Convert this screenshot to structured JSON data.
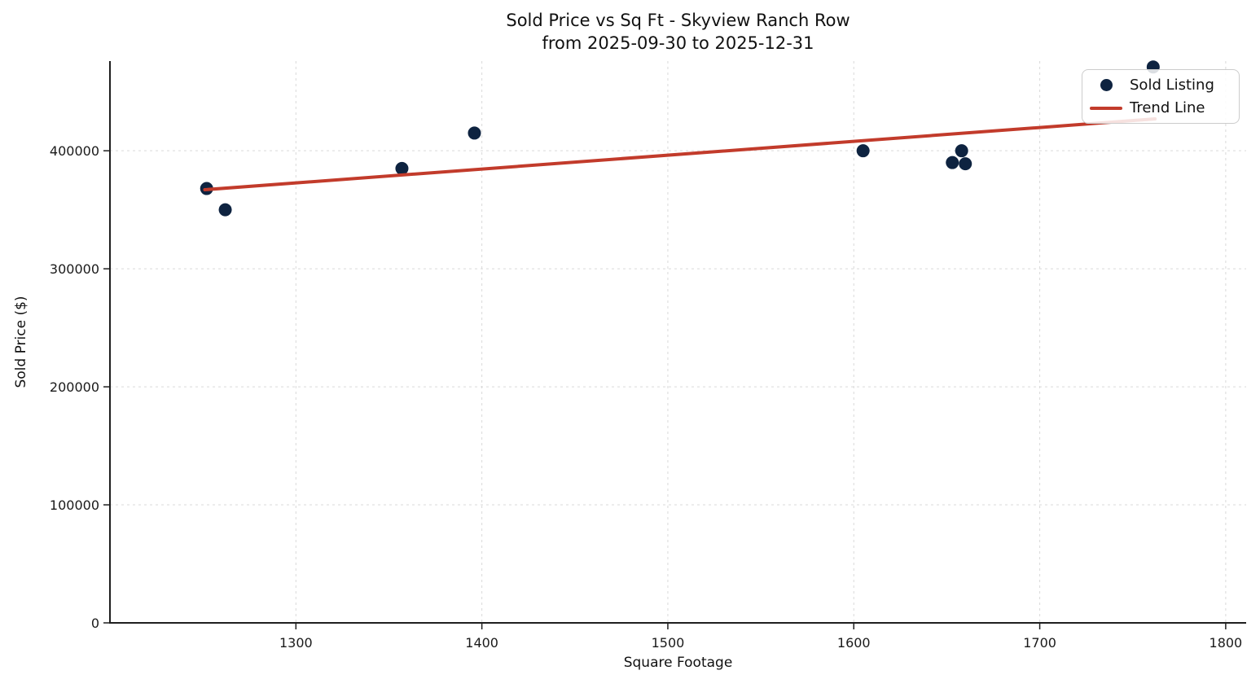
{
  "chart_data": {
    "type": "scatter",
    "title": "Sold Price vs Sq Ft - Skyview Ranch Row",
    "subtitle": "from 2025-09-30 to 2025-12-31",
    "xlabel": "Square Footage",
    "ylabel": "Sold Price ($)",
    "xlim": [
      1200,
      1811
    ],
    "ylim": [
      0,
      476000
    ],
    "xticks": [
      1300,
      1400,
      1500,
      1600,
      1700,
      1800
    ],
    "yticks": [
      0,
      100000,
      200000,
      300000,
      400000
    ],
    "grid": true,
    "legend": {
      "position": "upper right",
      "items": [
        {
          "label": "Sold Listing",
          "marker": "dot",
          "color": "#0e2340"
        },
        {
          "label": "Trend Line",
          "marker": "line",
          "color": "#c23b2b"
        }
      ]
    },
    "series": [
      {
        "name": "Sold Listing",
        "type": "scatter",
        "color": "#0e2340",
        "marker_radius": 8,
        "points": [
          {
            "sqft": 1252,
            "price": 368000
          },
          {
            "sqft": 1262,
            "price": 350000
          },
          {
            "sqft": 1357,
            "price": 385000
          },
          {
            "sqft": 1396,
            "price": 415000
          },
          {
            "sqft": 1605,
            "price": 400000
          },
          {
            "sqft": 1658,
            "price": 400000
          },
          {
            "sqft": 1653,
            "price": 390000
          },
          {
            "sqft": 1660,
            "price": 389000
          },
          {
            "sqft": 1761,
            "price": 471000
          }
        ]
      },
      {
        "name": "Trend Line",
        "type": "line",
        "color": "#c23b2b",
        "points": [
          {
            "sqft": 1251,
            "price": 367000
          },
          {
            "sqft": 1762,
            "price": 427000
          }
        ]
      }
    ],
    "colors": {
      "dot": "#0e2340",
      "trend": "#c23b2b",
      "grid": "#d9d9d9",
      "spine": "#1f1f1f",
      "text": "#1a1a1a"
    }
  }
}
